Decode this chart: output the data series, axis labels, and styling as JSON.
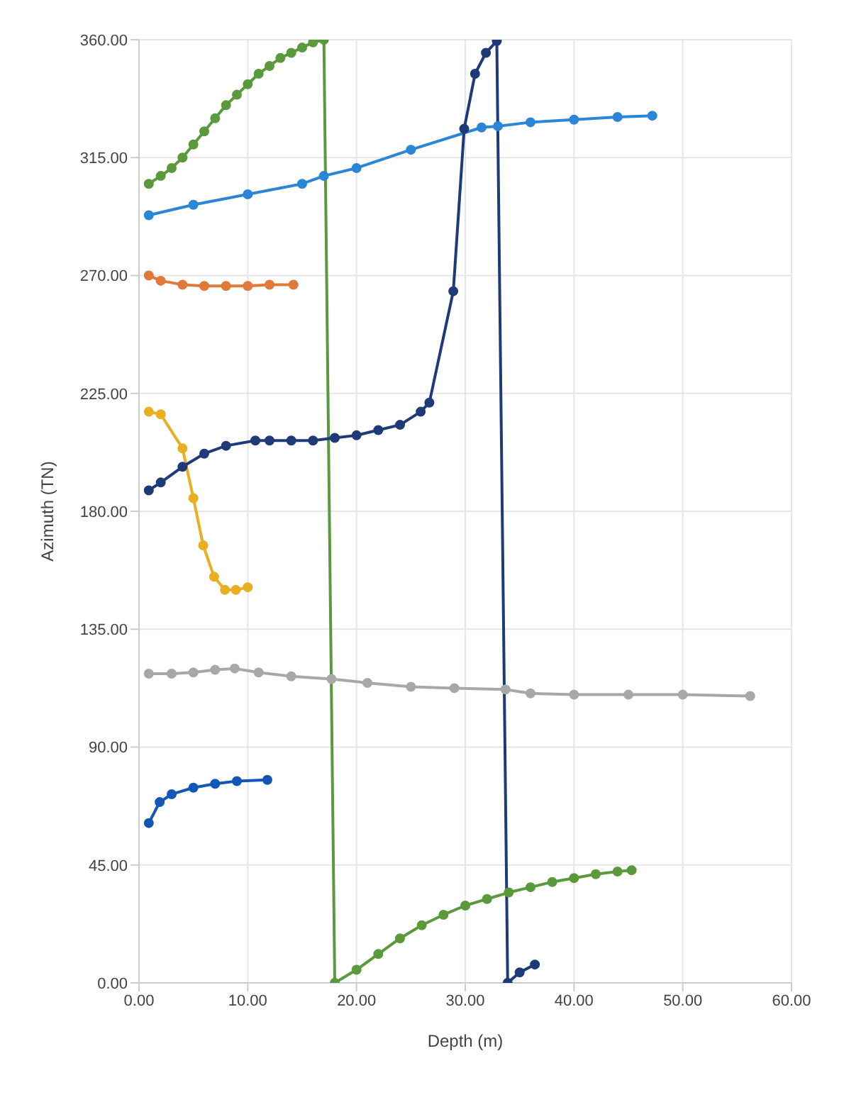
{
  "chart_data": {
    "type": "line",
    "xlabel": "Depth (m)",
    "ylabel": "Azimuth (TN)",
    "xlim": [
      0,
      60
    ],
    "xticks": [
      {
        "value": 0,
        "label": "0.00"
      },
      {
        "value": 10,
        "label": "10.00"
      },
      {
        "value": 20,
        "label": "20.00"
      },
      {
        "value": 30,
        "label": "30.00"
      },
      {
        "value": 40,
        "label": "40.00"
      },
      {
        "value": 50,
        "label": "50.00"
      },
      {
        "value": 60,
        "label": "60.00"
      }
    ],
    "ylim": [
      0,
      360
    ],
    "yticks": [
      {
        "value": 0,
        "label": "0.00"
      },
      {
        "value": 45,
        "label": "45.00"
      },
      {
        "value": 90,
        "label": "90.00"
      },
      {
        "value": 135,
        "label": "135.00"
      },
      {
        "value": 180,
        "label": "180.00"
      },
      {
        "value": 225,
        "label": "225.00"
      },
      {
        "value": 270,
        "label": "270.00"
      },
      {
        "value": 315,
        "label": "315.00"
      },
      {
        "value": 360,
        "label": "360.00"
      }
    ],
    "grid": true,
    "marker": "circle",
    "line_style": "solid",
    "series": [
      {
        "color": "#5a9a3c",
        "x": [
          0.9,
          2,
          3,
          4,
          5,
          6,
          7,
          8,
          9,
          10,
          11,
          12,
          13,
          14,
          15,
          16,
          17,
          18,
          20,
          22,
          24,
          26,
          28,
          30,
          32,
          34,
          36,
          38,
          40,
          42,
          44,
          45.3
        ],
        "values": [
          305,
          308,
          311,
          315,
          320,
          325,
          330,
          335,
          339,
          343,
          347,
          350,
          353,
          355,
          357,
          359,
          360,
          0,
          5,
          11,
          17,
          22,
          26,
          29.5,
          32,
          34.5,
          36.5,
          38.5,
          40,
          41.5,
          42.5,
          43
        ]
      },
      {
        "color": "#2a86d6",
        "x": [
          0.9,
          5,
          10,
          15,
          17,
          20,
          25,
          31.5,
          33,
          36,
          40,
          44,
          47.2
        ],
        "values": [
          293,
          297,
          301,
          305,
          308,
          311,
          318,
          326.5,
          327,
          328.5,
          329.5,
          330.5,
          331
        ]
      },
      {
        "color": "#e07a3a",
        "x": [
          0.9,
          2,
          4,
          6,
          8,
          10,
          12,
          14.2
        ],
        "values": [
          270,
          268,
          266.5,
          266,
          266,
          266,
          266.5,
          266.5
        ]
      },
      {
        "color": "#e8b020",
        "x": [
          0.9,
          2,
          4,
          5,
          5.9,
          6.9,
          7.9,
          8.9,
          10
        ],
        "values": [
          218,
          217,
          204,
          185,
          167,
          155,
          150,
          150,
          151
        ]
      },
      {
        "color": "#1f3a78",
        "x": [
          0.9,
          2,
          4,
          6,
          8,
          10.7,
          12,
          14,
          16,
          18,
          20,
          22,
          24,
          25.9,
          26.7,
          28.9,
          29.9,
          30.9,
          31.9,
          32.9,
          33.9,
          35,
          36.4
        ],
        "values": [
          188,
          191,
          197,
          202,
          205,
          207,
          207,
          207,
          207,
          208,
          209,
          211,
          213,
          218,
          221.5,
          264,
          326,
          347,
          355,
          359.5,
          0,
          4,
          7
        ]
      },
      {
        "color": "#a8a8a8",
        "x": [
          0.9,
          3,
          5,
          7,
          8.8,
          11,
          14,
          17.7,
          21,
          25,
          29,
          33.7,
          36,
          40,
          45,
          50,
          56.2
        ],
        "values": [
          118,
          118,
          118.5,
          119.5,
          120,
          118.5,
          117,
          116,
          114.5,
          113,
          112.5,
          112,
          110.5,
          110,
          110,
          110,
          109.5
        ]
      },
      {
        "color": "#1257b8",
        "x": [
          0.9,
          1.9,
          3,
          5,
          7,
          9,
          11.8
        ],
        "values": [
          61,
          69,
          72,
          74.5,
          76,
          77,
          77.5
        ]
      }
    ]
  }
}
